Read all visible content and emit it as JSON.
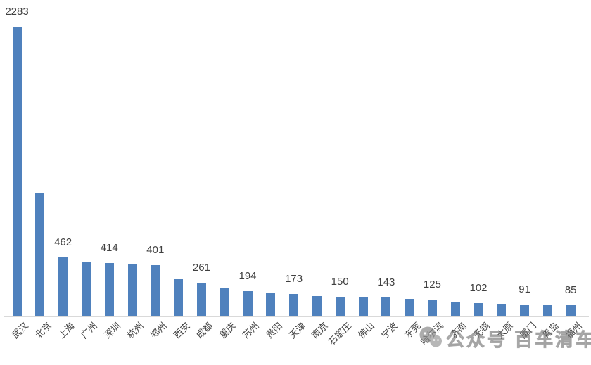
{
  "chart_data": {
    "type": "bar",
    "title": "",
    "xlabel": "",
    "ylabel": "",
    "categories": [
      "武汉",
      "北京",
      "上海",
      "广州",
      "深圳",
      "杭州",
      "郑州",
      "西安",
      "成都",
      "重庆",
      "苏州",
      "贵阳",
      "天津",
      "南京",
      "石家庄",
      "佛山",
      "宁波",
      "东莞",
      "哈尔滨",
      "济南",
      "无锡",
      "太原",
      "厦门",
      "青岛",
      "福州"
    ],
    "values": [
      2283,
      970,
      462,
      430,
      414,
      408,
      401,
      290,
      261,
      220,
      194,
      180,
      173,
      158,
      150,
      146,
      143,
      132,
      125,
      113,
      102,
      96,
      91,
      87,
      85
    ],
    "data_labels": [
      "2283",
      "",
      "462",
      "",
      "414",
      "",
      "401",
      "",
      "261",
      "",
      "194",
      "",
      "173",
      "",
      "150",
      "",
      "143",
      "",
      "125",
      "",
      "102",
      "",
      "91",
      "",
      "85"
    ],
    "ylim": [
      0,
      2400
    ],
    "grid": false,
    "legend": false,
    "bar_color": "#4f81bd",
    "axis_color": "#d9d9d9",
    "label_color": "#404040"
  },
  "watermark": {
    "icon": "wechat-icon",
    "text": "公众号 百车清车"
  }
}
